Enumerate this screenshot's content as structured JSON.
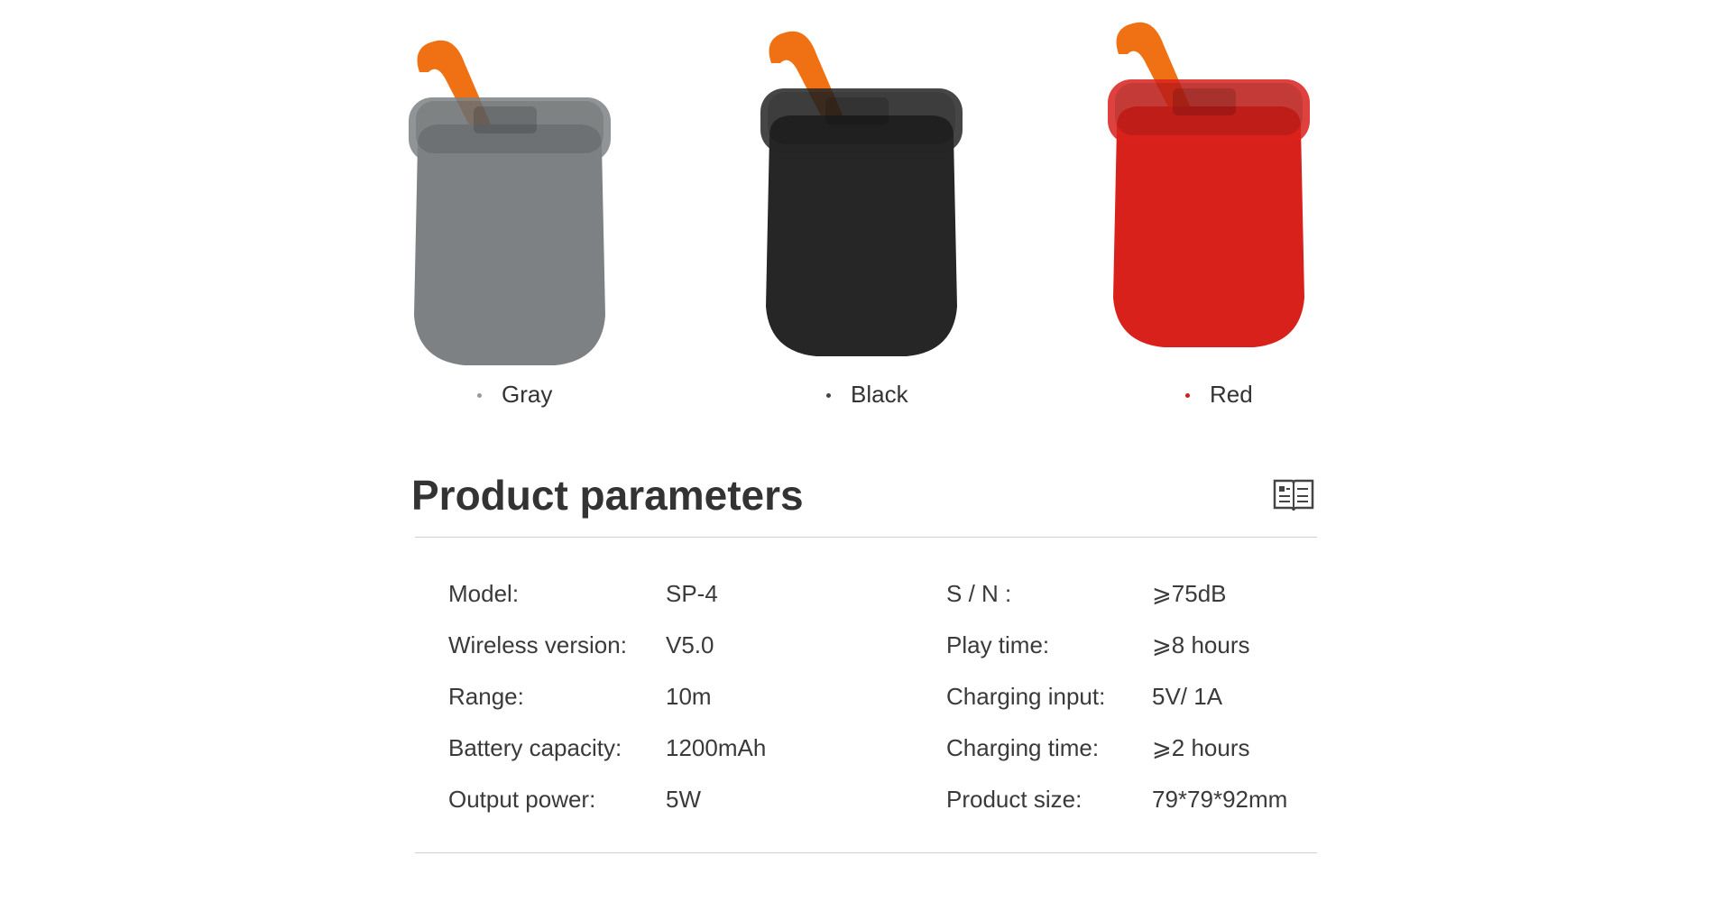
{
  "variants": [
    {
      "name": "Gray"
    },
    {
      "name": "Black"
    },
    {
      "name": "Red"
    }
  ],
  "section": {
    "title": "Product parameters"
  },
  "specs": {
    "left": [
      {
        "label": "Model:",
        "value": "SP-4"
      },
      {
        "label": "Wireless version:",
        "value": "V5.0"
      },
      {
        "label": "Range:",
        "value": "10m"
      },
      {
        "label": "Battery capacity:",
        "value": "1200mAh"
      },
      {
        "label": "Output power:",
        "value": "5W"
      }
    ],
    "right": [
      {
        "label": "S / N :",
        "value": "⩾75dB"
      },
      {
        "label": "Play time:",
        "value": "⩾8 hours"
      },
      {
        "label": "Charging input:",
        "value": "5V/ 1A"
      },
      {
        "label": "Charging time:",
        "value": "⩾2 hours"
      },
      {
        "label": "Product size:",
        "value": "79*79*92mm"
      }
    ]
  }
}
